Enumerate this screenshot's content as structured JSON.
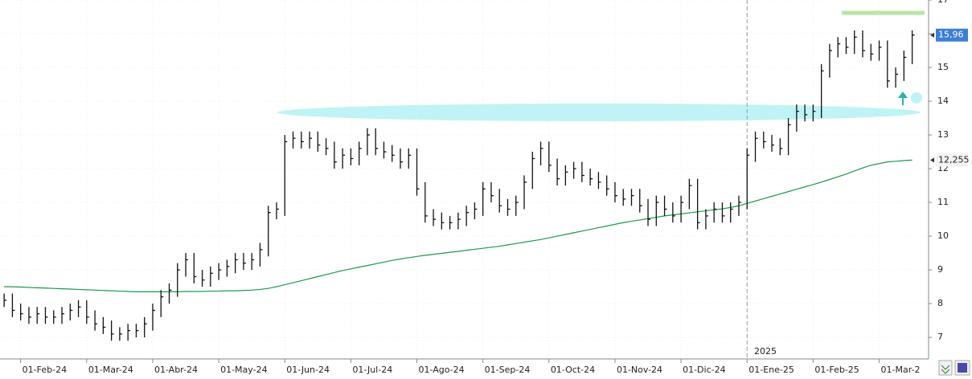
{
  "chart_data": {
    "type": "ohlc",
    "categories": [
      null,
      null,
      "01-Feb-24",
      null,
      null,
      null,
      null,
      null,
      null,
      null,
      "01-Mar-24",
      null,
      null,
      null,
      null,
      null,
      null,
      null,
      "01-Abr-24",
      null,
      null,
      null,
      null,
      null,
      null,
      null,
      "01-May-24",
      null,
      null,
      null,
      null,
      null,
      null,
      null,
      "01-Jun-24",
      null,
      null,
      null,
      null,
      null,
      null,
      null,
      "01-Jul-24",
      null,
      null,
      null,
      null,
      null,
      null,
      null,
      "01-Ago-24",
      null,
      null,
      null,
      null,
      null,
      null,
      null,
      "01-Sep-24",
      null,
      null,
      null,
      null,
      null,
      null,
      null,
      "01-Oct-24",
      null,
      null,
      null,
      null,
      null,
      null,
      null,
      "01-Nov-24",
      null,
      null,
      null,
      null,
      null,
      null,
      null,
      "01-Dic-24",
      null,
      null,
      null,
      null,
      null,
      null,
      null,
      "01-Ene-25",
      null,
      null,
      null,
      null,
      null,
      null,
      null,
      "01-Feb-25",
      null,
      null,
      null,
      null,
      null,
      null,
      null,
      "01-Mar-2",
      null,
      null,
      null,
      null
    ],
    "high": [
      8.3,
      8.3,
      8.0,
      7.9,
      7.9,
      7.9,
      7.8,
      7.9,
      8.0,
      8.1,
      8.1,
      7.8,
      7.6,
      7.5,
      7.3,
      7.4,
      7.4,
      7.6,
      8.0,
      8.4,
      8.6,
      9.2,
      9.5,
      9.5,
      9.0,
      9.1,
      9.2,
      9.3,
      9.5,
      9.5,
      9.5,
      9.8,
      10.9,
      11.0,
      13.0,
      13.1,
      13.1,
      13.1,
      13.1,
      12.9,
      12.8,
      12.6,
      12.6,
      12.8,
      13.2,
      13.2,
      12.8,
      12.7,
      12.6,
      12.6,
      12.6,
      11.6,
      10.8,
      10.7,
      10.6,
      10.7,
      10.9,
      11.0,
      11.6,
      11.6,
      11.4,
      11.1,
      11.2,
      11.8,
      12.5,
      12.8,
      12.8,
      12.3,
      12.1,
      12.2,
      12.2,
      12.0,
      11.9,
      11.8,
      11.6,
      11.4,
      11.4,
      11.4,
      11.1,
      11.2,
      11.2,
      11.0,
      11.2,
      11.7,
      11.7,
      10.8,
      11.0,
      11.0,
      11.0,
      11.2,
      12.6,
      13.1,
      13.1,
      13.0,
      12.9,
      13.5,
      13.9,
      13.9,
      13.9,
      15.1,
      15.7,
      15.9,
      15.9,
      16.1,
      16.1,
      15.7,
      15.8,
      15.8,
      15.0,
      15.5,
      16.1
    ],
    "low": [
      7.9,
      7.6,
      7.5,
      7.4,
      7.4,
      7.4,
      7.4,
      7.4,
      7.5,
      7.6,
      7.4,
      7.2,
      7.1,
      6.9,
      6.9,
      6.9,
      7.0,
      7.0,
      7.2,
      7.6,
      8.0,
      8.2,
      8.8,
      8.6,
      8.5,
      8.5,
      8.7,
      8.8,
      8.9,
      9.0,
      9.0,
      9.1,
      9.4,
      10.5,
      10.6,
      12.6,
      12.6,
      12.6,
      12.5,
      12.4,
      12.0,
      12.0,
      12.1,
      12.1,
      12.4,
      12.4,
      12.3,
      12.2,
      12.0,
      12.0,
      11.2,
      10.4,
      10.3,
      10.2,
      10.2,
      10.2,
      10.3,
      10.5,
      10.6,
      11.0,
      10.7,
      10.6,
      10.6,
      10.8,
      11.4,
      12.1,
      11.9,
      11.5,
      11.5,
      11.7,
      11.6,
      11.5,
      11.4,
      11.2,
      11.0,
      10.9,
      10.9,
      10.7,
      10.3,
      10.3,
      10.6,
      10.4,
      10.4,
      10.8,
      10.2,
      10.2,
      10.4,
      10.4,
      10.4,
      10.6,
      10.8,
      12.2,
      12.6,
      12.5,
      12.4,
      12.4,
      13.1,
      13.4,
      13.4,
      13.5,
      14.7,
      15.3,
      15.4,
      15.4,
      15.3,
      15.2,
      15.2,
      14.4,
      14.4,
      14.6,
      15.1
    ],
    "close": [
      8.1,
      7.8,
      7.7,
      7.6,
      7.7,
      7.6,
      7.6,
      7.7,
      7.8,
      7.9,
      7.6,
      7.4,
      7.3,
      7.1,
      7.1,
      7.2,
      7.2,
      7.4,
      7.8,
      8.2,
      8.4,
      9.0,
      9.3,
      8.8,
      8.7,
      8.9,
      9.0,
      9.1,
      9.3,
      9.2,
      9.3,
      9.6,
      10.7,
      10.8,
      12.8,
      12.9,
      12.8,
      12.9,
      12.7,
      12.6,
      12.2,
      12.4,
      12.3,
      12.6,
      13.0,
      12.6,
      12.5,
      12.4,
      12.2,
      12.4,
      11.4,
      10.6,
      10.5,
      10.4,
      10.4,
      10.5,
      10.7,
      10.8,
      11.4,
      11.2,
      10.9,
      10.8,
      11.0,
      11.6,
      12.3,
      12.6,
      12.1,
      11.7,
      11.9,
      12.0,
      11.8,
      11.7,
      11.6,
      11.4,
      11.2,
      11.1,
      11.2,
      10.9,
      10.5,
      11.0,
      10.8,
      10.6,
      11.0,
      11.5,
      10.4,
      10.6,
      10.8,
      10.6,
      10.8,
      11.0,
      12.4,
      12.9,
      12.8,
      12.7,
      12.6,
      13.3,
      13.7,
      13.6,
      13.7,
      14.9,
      15.5,
      15.7,
      15.6,
      15.9,
      15.5,
      15.4,
      15.6,
      14.6,
      14.8,
      15.3,
      15.96
    ],
    "ma": {
      "color": "#1a9a4a",
      "values": [
        8.5,
        8.5,
        8.49,
        8.48,
        8.47,
        8.46,
        8.45,
        8.44,
        8.43,
        8.42,
        8.41,
        8.4,
        8.39,
        8.38,
        8.37,
        8.36,
        8.35,
        8.35,
        8.35,
        8.35,
        8.35,
        8.35,
        8.36,
        8.36,
        8.36,
        8.37,
        8.37,
        8.38,
        8.38,
        8.39,
        8.4,
        8.42,
        8.45,
        8.5,
        8.56,
        8.62,
        8.68,
        8.74,
        8.8,
        8.86,
        8.92,
        8.98,
        9.03,
        9.08,
        9.13,
        9.18,
        9.23,
        9.28,
        9.32,
        9.36,
        9.4,
        9.43,
        9.46,
        9.49,
        9.52,
        9.55,
        9.58,
        9.61,
        9.64,
        9.67,
        9.7,
        9.74,
        9.78,
        9.82,
        9.86,
        9.9,
        9.95,
        10.0,
        10.05,
        10.1,
        10.15,
        10.2,
        10.25,
        10.3,
        10.35,
        10.4,
        10.44,
        10.48,
        10.52,
        10.56,
        10.6,
        10.63,
        10.66,
        10.69,
        10.72,
        10.75,
        10.78,
        10.81,
        10.85,
        10.9,
        10.97,
        11.04,
        11.11,
        11.18,
        11.25,
        11.32,
        11.39,
        11.46,
        11.53,
        11.6,
        11.68,
        11.76,
        11.84,
        11.93,
        12.02,
        12.1,
        12.15,
        12.2,
        12.22,
        12.24,
        12.255
      ]
    },
    "color": "#111111",
    "ylim": [
      6.36,
      17
    ],
    "yticks": [
      7,
      8,
      9,
      10,
      11,
      12,
      13,
      14,
      15,
      16,
      17
    ],
    "grid": true,
    "last_price": {
      "value": 15.96,
      "label": "15,96"
    },
    "ma_last": {
      "value": 12.255,
      "label": "12,255"
    },
    "year_label": "2025"
  }
}
